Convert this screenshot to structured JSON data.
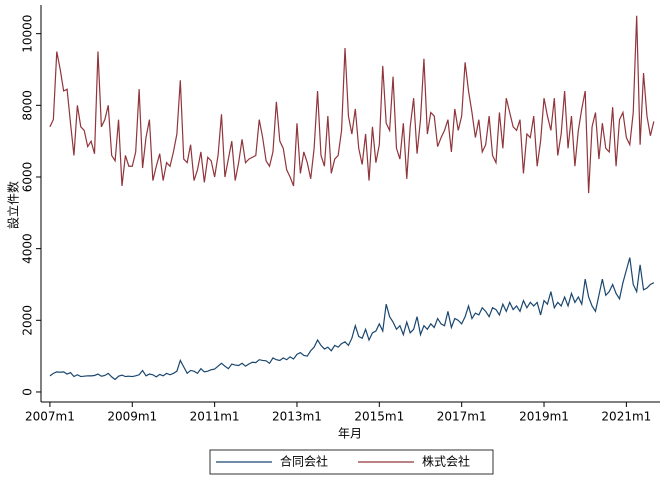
{
  "chart_data": {
    "type": "line",
    "x_label": "年月",
    "y_label": "設立件数",
    "x": [
      564,
      565,
      566,
      567,
      568,
      569,
      570,
      571,
      572,
      573,
      574,
      575,
      576,
      577,
      578,
      579,
      580,
      581,
      582,
      583,
      584,
      585,
      586,
      587,
      588,
      589,
      590,
      591,
      592,
      593,
      594,
      595,
      596,
      597,
      598,
      599,
      600,
      601,
      602,
      603,
      604,
      605,
      606,
      607,
      608,
      609,
      610,
      611,
      612,
      613,
      614,
      615,
      616,
      617,
      618,
      619,
      620,
      621,
      622,
      623,
      624,
      625,
      626,
      627,
      628,
      629,
      630,
      631,
      632,
      633,
      634,
      635,
      636,
      637,
      638,
      639,
      640,
      641,
      642,
      643,
      644,
      645,
      646,
      647,
      648,
      649,
      650,
      651,
      652,
      653,
      654,
      655,
      656,
      657,
      658,
      659,
      660,
      661,
      662,
      663,
      664,
      665,
      666,
      667,
      668,
      669,
      670,
      671,
      672,
      673,
      674,
      675,
      676,
      677,
      678,
      679,
      680,
      681,
      682,
      683,
      684,
      685,
      686,
      687,
      688,
      689,
      690,
      691,
      692,
      693,
      694,
      695,
      696,
      697,
      698,
      699,
      700,
      701,
      702,
      703,
      704,
      705,
      706,
      707,
      708,
      709,
      710,
      711,
      712,
      713,
      714,
      715,
      716,
      717,
      718,
      719,
      720,
      721,
      722,
      723,
      724,
      725,
      726,
      727,
      728,
      729,
      730,
      731,
      732,
      733,
      734,
      735,
      736,
      737,
      738,
      739,
      740
    ],
    "xlim": [
      561.4,
      741.8
    ],
    "xticks": [
      {
        "value": 564,
        "label": "2007m1"
      },
      {
        "value": 588,
        "label": "2009m1"
      },
      {
        "value": 612,
        "label": "2011m1"
      },
      {
        "value": 636,
        "label": "2013m1"
      },
      {
        "value": 660,
        "label": "2015m1"
      },
      {
        "value": 684,
        "label": "2017m1"
      },
      {
        "value": 708,
        "label": "2019m1"
      },
      {
        "value": 732,
        "label": "2021m1"
      }
    ],
    "ylim": [
      -280,
      10800
    ],
    "yticks": [
      0,
      2000,
      4000,
      6000,
      8000,
      10000
    ],
    "legend": "bottom",
    "series": [
      {
        "name": "合同会社",
        "color": "#1a476f",
        "values": [
          450,
          520,
          560,
          550,
          560,
          500,
          540,
          430,
          480,
          430,
          440,
          450,
          450,
          460,
          500,
          440,
          460,
          520,
          420,
          350,
          440,
          470,
          430,
          440,
          430,
          450,
          480,
          600,
          450,
          500,
          480,
          420,
          490,
          450,
          520,
          480,
          520,
          580,
          880,
          700,
          520,
          600,
          580,
          520,
          650,
          560,
          580,
          620,
          640,
          720,
          800,
          720,
          650,
          780,
          750,
          740,
          800,
          720,
          780,
          830,
          820,
          900,
          880,
          870,
          800,
          950,
          900,
          880,
          950,
          900,
          980,
          920,
          1050,
          1100,
          1020,
          1000,
          1150,
          1250,
          1450,
          1300,
          1200,
          1250,
          1150,
          1300,
          1250,
          1350,
          1400,
          1300,
          1500,
          1850,
          1550,
          1500,
          1750,
          1450,
          1650,
          1700,
          1900,
          1700,
          2450,
          2100,
          1950,
          1750,
          1850,
          1600,
          1950,
          1650,
          1750,
          2100,
          1600,
          1850,
          1750,
          1900,
          1800,
          2050,
          1900,
          1850,
          2250,
          1800,
          2050,
          2000,
          1900,
          2100,
          2400,
          2050,
          2200,
          2150,
          2350,
          2250,
          2100,
          2350,
          2300,
          2150,
          2450,
          2250,
          2500,
          2300,
          2400,
          2250,
          2550,
          2350,
          2500,
          2400,
          2500,
          2150,
          2550,
          2450,
          2800,
          2350,
          2500,
          2400,
          2650,
          2400,
          2750,
          2500,
          2650,
          2450,
          3150,
          2650,
          2400,
          2250,
          2700,
          3150,
          2700,
          2800,
          3000,
          2750,
          2600,
          3050,
          3400,
          3750,
          3000,
          2800,
          3550,
          2850,
          2900,
          3000,
          3050
        ]
      },
      {
        "name": "株式会社",
        "color": "#90353b",
        "values": [
          7400,
          7600,
          9500,
          9000,
          8400,
          8450,
          7500,
          6600,
          8000,
          7400,
          7300,
          6850,
          7000,
          6650,
          9500,
          7400,
          7600,
          8000,
          6600,
          6450,
          7600,
          5750,
          6600,
          6300,
          6300,
          6700,
          8450,
          6250,
          7100,
          7600,
          5900,
          6300,
          6650,
          5900,
          6400,
          6300,
          6700,
          7200,
          8700,
          6500,
          6400,
          6900,
          5900,
          6200,
          6700,
          5850,
          6550,
          6450,
          6000,
          6600,
          7750,
          6000,
          6500,
          7000,
          5900,
          6400,
          7050,
          6400,
          6500,
          6550,
          6600,
          7600,
          7100,
          6450,
          6300,
          6700,
          8100,
          7000,
          6800,
          6200,
          6000,
          5750,
          7500,
          6100,
          6700,
          6400,
          5950,
          6800,
          8400,
          6600,
          6300,
          7700,
          6100,
          6500,
          6600,
          7300,
          9600,
          7700,
          7200,
          7900,
          6800,
          6350,
          7200,
          5900,
          7400,
          6400,
          6900,
          9100,
          7500,
          7300,
          8800,
          6800,
          6500,
          7500,
          5950,
          7400,
          8200,
          6650,
          7600,
          9300,
          7200,
          7800,
          7700,
          6850,
          7100,
          7300,
          7600,
          6700,
          7900,
          7300,
          7700,
          9200,
          8400,
          7800,
          7100,
          7600,
          6700,
          6900,
          7700,
          6600,
          6400,
          7800,
          6800,
          8200,
          7800,
          7400,
          7300,
          7600,
          6100,
          7200,
          7100,
          7700,
          6300,
          7000,
          8200,
          7700,
          7300,
          8200,
          6600,
          7200,
          8400,
          6800,
          7700,
          6300,
          7300,
          7900,
          8400,
          5550,
          7400,
          7800,
          6500,
          7500,
          6800,
          6700,
          7950,
          6300,
          7600,
          7800,
          7100,
          6900,
          7800,
          10500,
          6900,
          8900,
          7700,
          7150,
          7550
        ]
      }
    ]
  }
}
